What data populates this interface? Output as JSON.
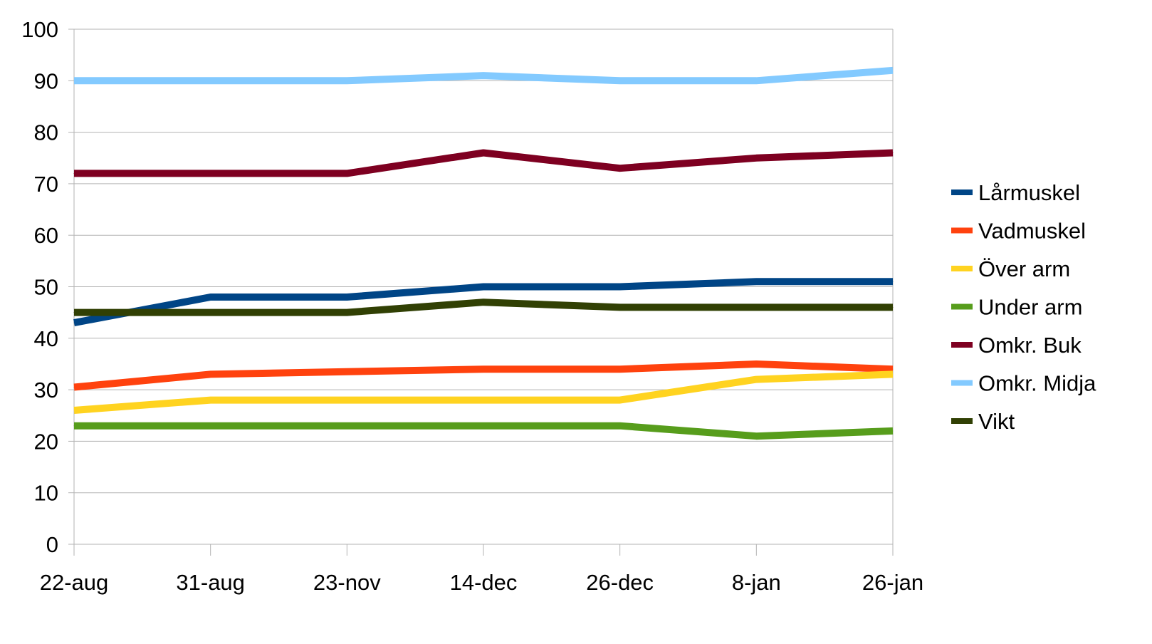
{
  "chart_data": {
    "type": "line",
    "title": "",
    "xlabel": "",
    "ylabel": "",
    "categories": [
      "22-aug",
      "31-aug",
      "23-nov",
      "14-dec",
      "26-dec",
      "8-jan",
      "26-jan"
    ],
    "ylim": [
      0,
      100
    ],
    "yticks": [
      0,
      10,
      20,
      30,
      40,
      50,
      60,
      70,
      80,
      90,
      100
    ],
    "grid": true,
    "legend_position": "right",
    "series": [
      {
        "name": "Lårmuskel",
        "color": "#004586",
        "values": [
          43,
          48,
          48,
          50,
          50,
          51,
          51
        ]
      },
      {
        "name": "Vadmuskel",
        "color": "#ff420e",
        "values": [
          30.5,
          33,
          33.5,
          34,
          34,
          35,
          34
        ]
      },
      {
        "name": "Över arm",
        "color": "#ffd320",
        "values": [
          26,
          28,
          28,
          28,
          28,
          32,
          33
        ]
      },
      {
        "name": "Under arm",
        "color": "#579d1c",
        "values": [
          23,
          23,
          23,
          23,
          23,
          21,
          22
        ]
      },
      {
        "name": "Omkr. Buk",
        "color": "#7e0021",
        "values": [
          72,
          72,
          72,
          76,
          73,
          75,
          76
        ]
      },
      {
        "name": "Omkr. Midja",
        "color": "#83caff",
        "values": [
          90,
          90,
          90,
          91,
          90,
          90,
          92
        ]
      },
      {
        "name": "Vikt",
        "color": "#314004",
        "values": [
          45,
          45,
          45,
          47,
          46,
          46,
          46
        ]
      }
    ]
  }
}
